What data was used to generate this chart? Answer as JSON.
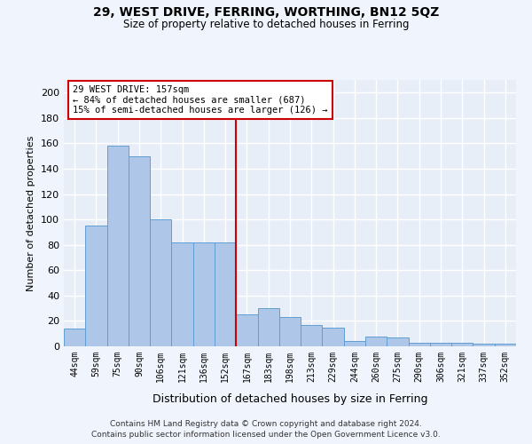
{
  "title": "29, WEST DRIVE, FERRING, WORTHING, BN12 5QZ",
  "subtitle": "Size of property relative to detached houses in Ferring",
  "xlabel": "Distribution of detached houses by size in Ferring",
  "ylabel": "Number of detached properties",
  "categories": [
    "44sqm",
    "59sqm",
    "75sqm",
    "90sqm",
    "106sqm",
    "121sqm",
    "136sqm",
    "152sqm",
    "167sqm",
    "183sqm",
    "198sqm",
    "213sqm",
    "229sqm",
    "244sqm",
    "260sqm",
    "275sqm",
    "290sqm",
    "306sqm",
    "321sqm",
    "337sqm",
    "352sqm"
  ],
  "values": [
    14,
    95,
    158,
    150,
    100,
    82,
    82,
    82,
    25,
    30,
    23,
    17,
    15,
    4,
    8,
    7,
    3,
    3,
    3,
    2,
    2
  ],
  "bar_color": "#aec6e8",
  "bar_edgecolor": "#5f9fd4",
  "background_color": "#e8eef8",
  "grid_color": "#ffffff",
  "fig_facecolor": "#f0f4fc",
  "ylim": [
    0,
    210
  ],
  "yticks": [
    0,
    20,
    40,
    60,
    80,
    100,
    120,
    140,
    160,
    180,
    200
  ],
  "vline_x_index": 8,
  "vline_color": "#cc0000",
  "annotation_text": "29 WEST DRIVE: 157sqm\n← 84% of detached houses are smaller (687)\n15% of semi-detached houses are larger (126) →",
  "annotation_box_edgecolor": "#cc0000",
  "footer_line1": "Contains HM Land Registry data © Crown copyright and database right 2024.",
  "footer_line2": "Contains public sector information licensed under the Open Government Licence v3.0."
}
